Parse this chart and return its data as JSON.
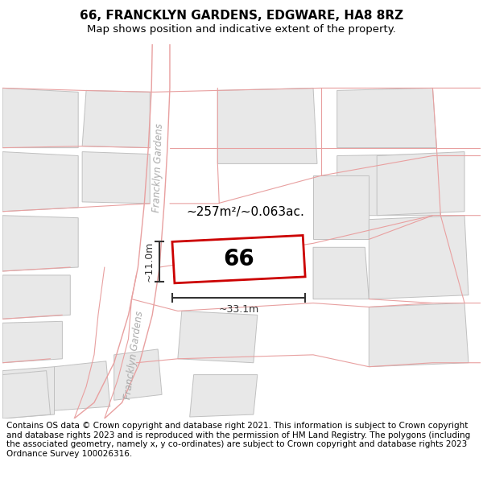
{
  "title": "66, FRANCKLYN GARDENS, EDGWARE, HA8 8RZ",
  "subtitle": "Map shows position and indicative extent of the property.",
  "footer": "Contains OS data © Crown copyright and database right 2021. This information is subject to Crown copyright and database rights 2023 and is reproduced with the permission of HM Land Registry. The polygons (including the associated geometry, namely x, y co-ordinates) are subject to Crown copyright and database rights 2023 Ordnance Survey 100026316.",
  "area_text": "~257m²/~0.063ac.",
  "label": "66",
  "dim_width": "~33.1m",
  "dim_height": "~11.0m",
  "title_fontsize": 11,
  "subtitle_fontsize": 9.5,
  "footer_fontsize": 7.5,
  "map_bg": "#f7f7f7",
  "block_fill": "#e8e8e8",
  "block_edge": "#c0c0c0",
  "road_line_color": "#e8a0a0",
  "road_border_color": "#cccccc",
  "highlight_border": "#cc0000",
  "highlight_fill": "#ffffff",
  "dim_color": "#333333",
  "road_label_color": "#aaaaaa"
}
